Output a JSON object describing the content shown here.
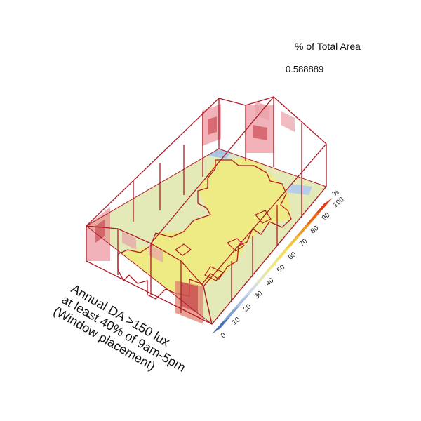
{
  "metric": {
    "title": "% of Total Area",
    "value": "0.588889"
  },
  "diagram": {
    "label_lines": [
      "Annual DA >150 lux",
      "at least 40% of 9am-5pm",
      "(Window placement)"
    ]
  },
  "legend": {
    "unit": "%",
    "ticks": [
      "0",
      "10",
      "20",
      "30",
      "40",
      "50",
      "60",
      "70",
      "80",
      "90",
      "100"
    ],
    "colors": [
      "#4a6fb5",
      "#7f9fd4",
      "#a8bfe4",
      "#cdd9e8",
      "#e3e7b5",
      "#eee88a",
      "#f3df5c",
      "#f2c23b",
      "#ef9624",
      "#e9661a",
      "#e23c1a"
    ]
  },
  "colors": {
    "outline": "#b01a26",
    "window_fill": "#e8808a",
    "pane_fill": "#c0303c",
    "floor_yellow": "#efeb86",
    "floor_pale": "#dfe6b4",
    "floor_blue": "#aac4e4",
    "floor_darkblue": "#5f84c7"
  }
}
